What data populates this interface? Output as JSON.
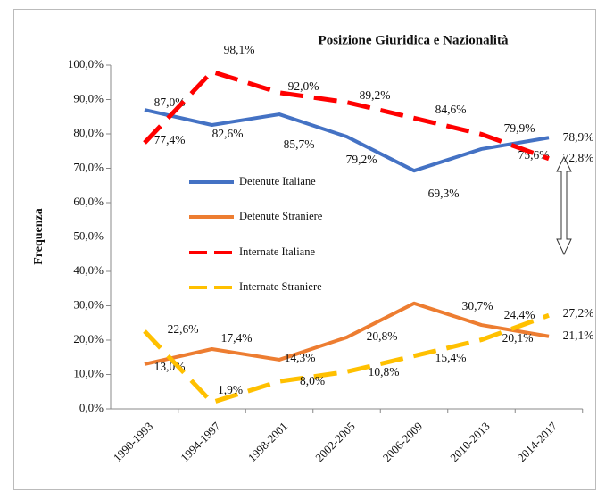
{
  "chart_data": {
    "type": "line",
    "title": "Posizione Giuridica e Nazionalità",
    "y_label": "Frequenza",
    "categories": [
      "1990-1993",
      "1994-1997",
      "1998-2001",
      "2002-2005",
      "2006-2009",
      "2010-2013",
      "2014-2017"
    ],
    "series": [
      {
        "name": "Detenute Italiane",
        "color": "#4472c4",
        "dashed": false,
        "values": [
          87.0,
          82.6,
          85.7,
          79.2,
          69.3,
          75.6,
          78.9
        ],
        "value_labels": [
          "87,0%",
          "82,6%",
          "85,7%",
          "79,2%",
          "69,3%",
          "75,6%",
          "78,9%"
        ]
      },
      {
        "name": "Detenute Straniere",
        "color": "#ed7d31",
        "dashed": false,
        "values": [
          13.0,
          17.4,
          14.3,
          20.8,
          30.7,
          24.4,
          21.1
        ],
        "value_labels": [
          "13,0%",
          "17,4%",
          "14,3%",
          "20,8%",
          "30,7%",
          "24,4%",
          "21,1%"
        ]
      },
      {
        "name": "Internate Italiane",
        "color": "#ff0000",
        "dashed": true,
        "values": [
          77.4,
          98.1,
          92.0,
          89.2,
          84.6,
          79.9,
          72.8
        ],
        "value_labels": [
          "77,4%",
          "98,1%",
          "92,0%",
          "89,2%",
          "84,6%",
          "79,9%",
          "72,8%"
        ]
      },
      {
        "name": "Internate Straniere",
        "color": "#ffc000",
        "dashed": true,
        "values": [
          22.6,
          1.9,
          8.0,
          10.8,
          15.4,
          20.1,
          27.2
        ],
        "value_labels": [
          "22,6%",
          "1,9%",
          "8,0%",
          "10,8%",
          "15,4%",
          "20,1%",
          "27,2%"
        ]
      }
    ],
    "ylim": [
      0,
      100
    ],
    "yticks": [
      {
        "value": 0,
        "label": "0,0%"
      },
      {
        "value": 10,
        "label": "10,0%"
      },
      {
        "value": 20,
        "label": "20,0%"
      },
      {
        "value": 30,
        "label": "30,0%"
      },
      {
        "value": 40,
        "label": "40,0%"
      },
      {
        "value": 50,
        "label": "50,0%"
      },
      {
        "value": 60,
        "label": "60,0%"
      },
      {
        "value": 70,
        "label": "70,0%"
      },
      {
        "value": 80,
        "label": "80,0%"
      },
      {
        "value": 90,
        "label": "90,0%"
      },
      {
        "value": 100,
        "label": "100,0%"
      }
    ],
    "grid": false
  }
}
